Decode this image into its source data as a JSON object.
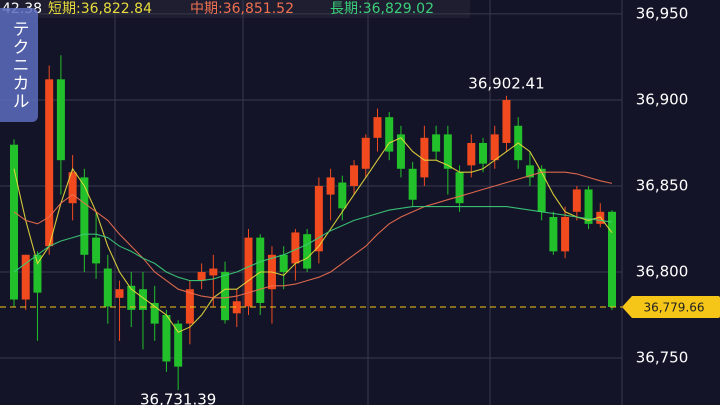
{
  "chart_data": {
    "type": "candlestick",
    "ylim": [
      36722.7,
      36958.1
    ],
    "yticks": [
      {
        "value": 36750,
        "label": "36,750"
      },
      {
        "value": 36800,
        "label": "36,800"
      },
      {
        "value": 36850,
        "label": "36,850"
      },
      {
        "value": 36900,
        "label": "36,900"
      },
      {
        "value": 36950,
        "label": "36,950"
      }
    ],
    "grid": true,
    "up_color": "#f04a1e",
    "down_color": "#22c02a",
    "ohlc": {
      "open": [
        36874,
        36784,
        36810,
        36815,
        36912,
        36840,
        36855,
        36820,
        36802,
        36785,
        36792,
        36790,
        36782,
        36775,
        36770,
        36770,
        36795,
        36798,
        36800,
        36776,
        36780,
        36820,
        36790,
        36810,
        36805,
        36822,
        36812,
        36845,
        36852,
        36850,
        36860,
        36878,
        36890,
        36880,
        36860,
        36855,
        36880,
        36880,
        36858,
        36862,
        36875,
        36865,
        36875,
        36885,
        36862,
        36860,
        36832,
        36812,
        36835,
        36848,
        36828,
        36835
      ],
      "high": [
        36877,
        36810,
        36812,
        36920,
        36926,
        36868,
        36860,
        36835,
        36810,
        36795,
        36800,
        36800,
        36792,
        36778,
        36772,
        36795,
        36805,
        36810,
        36806,
        36790,
        36825,
        36822,
        36815,
        36815,
        36825,
        36825,
        36855,
        36860,
        36856,
        36865,
        36880,
        36895,
        36893,
        36885,
        36864,
        36885,
        36885,
        36885,
        36862,
        36880,
        36878,
        36885,
        36902.41,
        36890,
        36870,
        36862,
        36835,
        36838,
        36850,
        36850,
        36840,
        36836
      ],
      "low": [
        36780,
        36778,
        36760,
        36810,
        36845,
        36830,
        36800,
        36796,
        36770,
        36760,
        36768,
        36755,
        36760,
        36742,
        36731.39,
        36758,
        36790,
        36780,
        36770,
        36768,
        36775,
        36775,
        36770,
        36790,
        36795,
        36800,
        36805,
        36830,
        36830,
        36845,
        36855,
        36870,
        36865,
        36855,
        36838,
        36850,
        36865,
        36845,
        36835,
        36855,
        36858,
        36860,
        36870,
        36860,
        36850,
        36830,
        36810,
        36808,
        36830,
        36825,
        36826,
        36778
      ],
      "close": [
        36784,
        36810,
        36788,
        36912,
        36865,
        36858,
        36810,
        36805,
        36780,
        36790,
        36778,
        36778,
        36770,
        36748,
        36745,
        36790,
        36800,
        36802,
        36772,
        36783,
        36820,
        36782,
        36810,
        36800,
        36823,
        36802,
        36850,
        36855,
        36837,
        36862,
        36878,
        36890,
        36870,
        36860,
        36842,
        36878,
        36870,
        36860,
        36840,
        36875,
        36863,
        36880,
        36900,
        36865,
        36855,
        36835,
        36812,
        36832,
        36848,
        36828,
        36835,
        36779.66
      ]
    },
    "series": [
      {
        "name": "短期:",
        "color": "#e8dc3c",
        "last_label": "36,822.84",
        "values": [
          36860,
          36830,
          36805,
          36815,
          36840,
          36860,
          36850,
          36835,
          36815,
          36800,
          36790,
          36785,
          36780,
          36775,
          36765,
          36768,
          36775,
          36785,
          36790,
          36790,
          36795,
          36800,
          36800,
          36798,
          36805,
          36808,
          36815,
          36825,
          36835,
          36845,
          36855,
          36865,
          36875,
          36878,
          36870,
          36865,
          36865,
          36862,
          36858,
          36858,
          36860,
          36865,
          36870,
          36875,
          36870,
          36858,
          36845,
          36835,
          36832,
          36830,
          36832,
          36822.84
        ]
      },
      {
        "name": "中期:",
        "color": "#f07050",
        "last_label": "36,851.52",
        "values": [
          36835,
          36830,
          36828,
          36832,
          36840,
          36845,
          36840,
          36835,
          36830,
          36822,
          36815,
          36808,
          36800,
          36795,
          36790,
          36788,
          36786,
          36785,
          36785,
          36786,
          36788,
          36790,
          36792,
          36792,
          36793,
          36795,
          36797,
          36800,
          36805,
          36810,
          36815,
          36822,
          36828,
          36832,
          36835,
          36838,
          36840,
          36842,
          36844,
          36846,
          36848,
          36850,
          36852,
          36854,
          36856,
          36858,
          36858,
          36858,
          36857,
          36855,
          36853,
          36851.52
        ]
      },
      {
        "name": "長期:",
        "color": "#3ccf7a",
        "last_label": "36,829.02",
        "values": [
          36800,
          36805,
          36810,
          36815,
          36818,
          36820,
          36822,
          36822,
          36820,
          36815,
          36812,
          36808,
          36805,
          36800,
          36797,
          36795,
          36795,
          36796,
          36798,
          36800,
          36803,
          36806,
          36808,
          36810,
          36813,
          36816,
          36820,
          36824,
          36827,
          36830,
          36832,
          36834,
          36836,
          36837,
          36838,
          36838,
          36838,
          36838,
          36838,
          36838,
          36838,
          36838,
          36838,
          36837,
          36836,
          36835,
          36834,
          36833,
          36832,
          36831,
          36830,
          36829.02
        ]
      }
    ],
    "annotations": [
      {
        "label": "36,902.41",
        "value": 36902.41
      },
      {
        "label": "36,731.39",
        "value": 36731.39
      }
    ],
    "last_price": {
      "label": "36,779.66",
      "value": 36779.66,
      "color": "#f5c518"
    },
    "cut_label": "42.38",
    "tab_label": "テクニカル"
  }
}
